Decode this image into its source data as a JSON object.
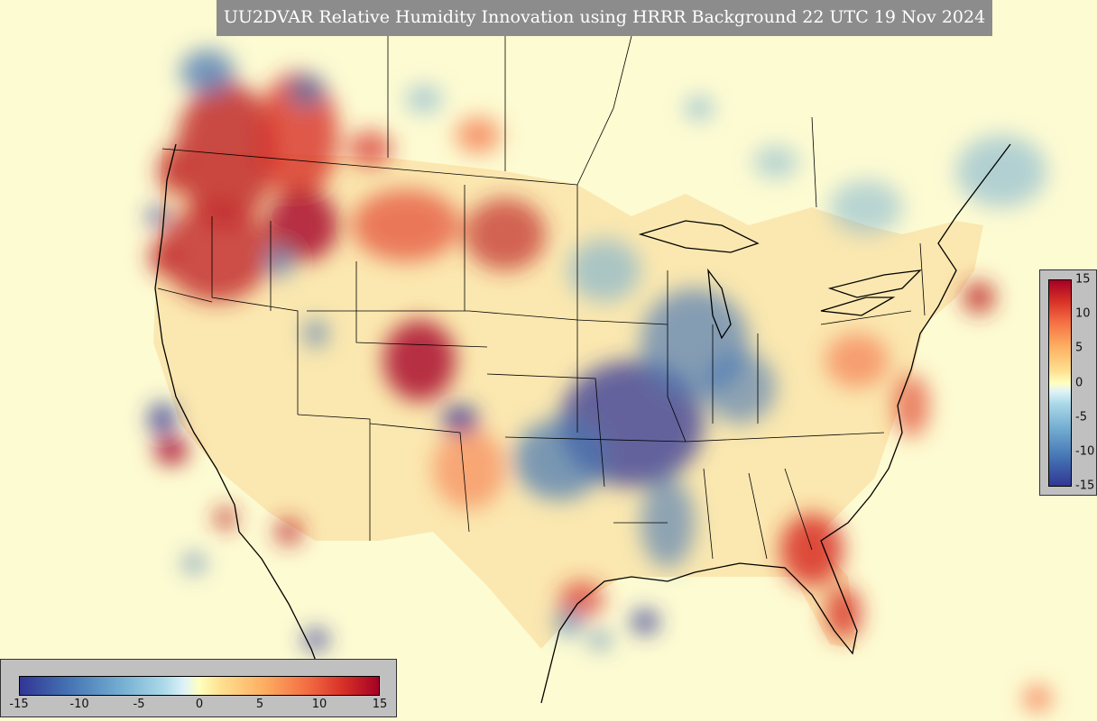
{
  "title": "UU2DVAR Relative Humidity Innovation using HRRR Background 22 UTC 19 Nov 2024",
  "colorbar": {
    "bottom_ticks": [
      "-15",
      "-10",
      "-5",
      "0",
      "5",
      "10",
      "15"
    ],
    "right_ticks": [
      "15",
      "10",
      "5",
      "0",
      "-5",
      "-10",
      "-15"
    ],
    "range": [
      -15,
      15
    ],
    "colors": [
      "#313695",
      "#4575b4",
      "#74add1",
      "#abd9e9",
      "#e0f3f8",
      "#ffffbf",
      "#fee090",
      "#fdae61",
      "#f46d43",
      "#d73027",
      "#a50026"
    ]
  },
  "background_color": "#fdfbd2"
}
